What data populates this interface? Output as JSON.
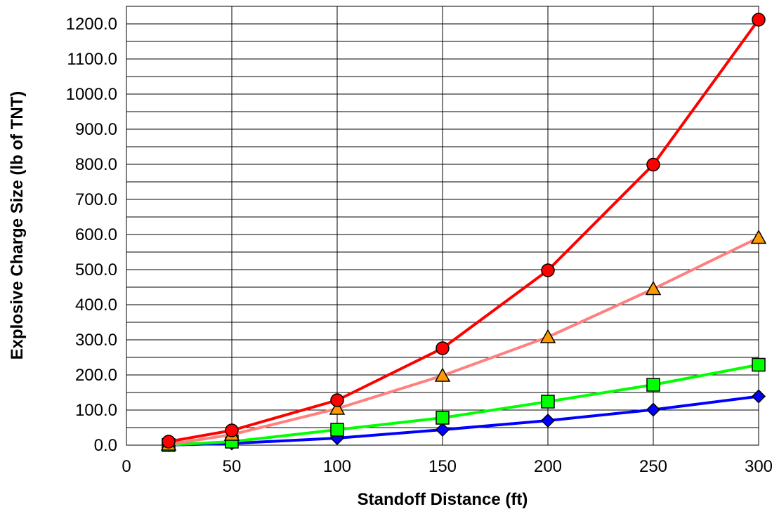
{
  "chart_data": {
    "type": "line",
    "title": "",
    "xlabel": "Standoff Distance (ft)",
    "ylabel": "Explosive Charge Size (lb of TNT)",
    "xlim": [
      0,
      300
    ],
    "ylim": [
      0,
      1250
    ],
    "x_ticks": [
      "0",
      "50",
      "100",
      "150",
      "200",
      "250",
      "300"
    ],
    "y_ticks": [
      "0.0",
      "100.0",
      "200.0",
      "300.0",
      "400.0",
      "500.0",
      "600.0",
      "700.0",
      "800.0",
      "900.0",
      "1000.0",
      "1100.0",
      "1200.0"
    ],
    "grid": true,
    "legend": "none",
    "x": [
      20,
      50,
      100,
      150,
      200,
      250,
      300
    ],
    "series": [
      {
        "values": [
          0.2,
          5,
          20,
          44,
          70,
          101,
          139
        ],
        "line_color": "#0000ff",
        "marker": "diamond",
        "marker_color": "#0000ff"
      },
      {
        "values": [
          0.5,
          10,
          44,
          78,
          124,
          172,
          229
        ],
        "line_color": "#00ff00",
        "marker": "square",
        "marker_color": "#00ff00"
      },
      {
        "values": [
          2,
          30,
          104,
          198,
          308,
          445,
          591
        ],
        "line_color": "#ff8080",
        "marker": "triangle",
        "marker_color": "#ff9900"
      },
      {
        "values": [
          10,
          42,
          128,
          276,
          498,
          799,
          1212
        ],
        "line_color": "#ff0000",
        "marker": "circle",
        "marker_color": "#ff0000"
      }
    ]
  }
}
